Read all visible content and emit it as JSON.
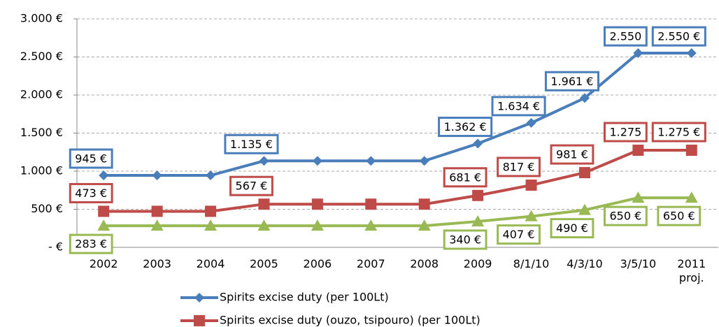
{
  "chart_data": {
    "type": "line",
    "categories": [
      "2002",
      "2003",
      "2004",
      "2005",
      "2006",
      "2007",
      "2008",
      "2009",
      "8/1/10",
      "4/3/10",
      "3/5/10",
      "2011 proj."
    ],
    "series": [
      {
        "name": "Spirits excise duty (per 100Lt)",
        "color": "#4a7ebb",
        "marker": "diamond",
        "values": [
          945,
          945,
          945,
          1135,
          1135,
          1135,
          1135,
          1362,
          1634,
          1961,
          2550,
          2550
        ],
        "value_labels": [
          "945 €",
          null,
          null,
          "1.135 €",
          null,
          null,
          null,
          "1.362 €",
          "1.634 €",
          "1.961 €",
          "2.550",
          "2.550 €"
        ]
      },
      {
        "name": "Spirits excise duty (ouzo, tsipouro) (per 100Lt)",
        "color": "#be4b48",
        "marker": "square",
        "values": [
          473,
          473,
          473,
          567,
          567,
          567,
          567,
          681,
          817,
          981,
          1275,
          1275
        ],
        "value_labels": [
          "473 €",
          null,
          null,
          "567 €",
          null,
          null,
          null,
          "681 €",
          "817 €",
          "981 €",
          "1.275",
          "1.275 €"
        ]
      },
      {
        "color": "#98b954",
        "marker": "triangle",
        "values": [
          283,
          283,
          283,
          283,
          283,
          283,
          283,
          340,
          407,
          490,
          650,
          650
        ],
        "value_labels": [
          "283 €",
          null,
          null,
          null,
          null,
          null,
          null,
          "340 €",
          "407 €",
          "490 €",
          "650 €",
          "650 €"
        ]
      }
    ],
    "ylim": [
      0,
      3000
    ],
    "yticks": [
      {
        "value": 0,
        "label": "-  €"
      },
      {
        "value": 500,
        "label": "500 €"
      },
      {
        "value": 1000,
        "label": "1.000 €"
      },
      {
        "value": 1500,
        "label": "1.500 €"
      },
      {
        "value": 2000,
        "label": "2.000 €"
      },
      {
        "value": 2500,
        "label": "2.500 €"
      },
      {
        "value": 3000,
        "label": "3.000 €"
      }
    ],
    "grid": true
  }
}
